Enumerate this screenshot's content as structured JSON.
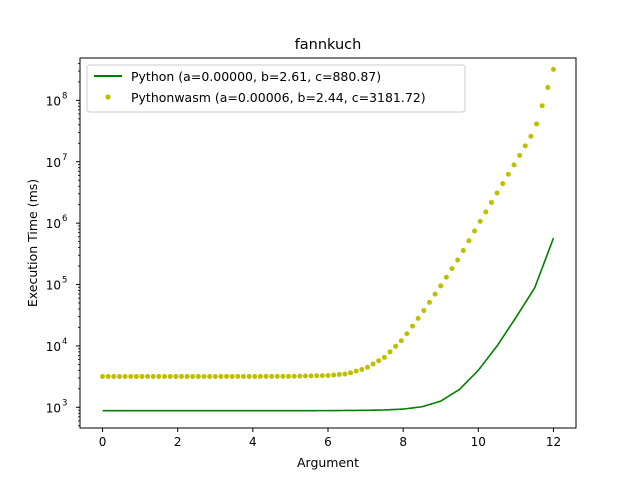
{
  "chart_data": {
    "type": "line",
    "title": "fannkuch",
    "xlabel": "Argument",
    "ylabel": "Execution Time (ms)",
    "xlim": [
      -0.6,
      12.6
    ],
    "ylim": [
      460,
      490000000
    ],
    "yscale": "log",
    "grid": false,
    "legend_position": "top-left",
    "x_ticks": [
      0,
      2,
      4,
      6,
      8,
      10,
      12
    ],
    "x_tick_labels": [
      "0",
      "2",
      "4",
      "6",
      "8",
      "10",
      "12"
    ],
    "y_ticks": [
      1000,
      10000,
      100000,
      1000000,
      10000000,
      100000000
    ],
    "y_tick_labels": [
      {
        "base": "10",
        "exp": "3"
      },
      {
        "base": "10",
        "exp": "4"
      },
      {
        "base": "10",
        "exp": "5"
      },
      {
        "base": "10",
        "exp": "6"
      },
      {
        "base": "10",
        "exp": "7"
      },
      {
        "base": "10",
        "exp": "8"
      }
    ],
    "series": [
      {
        "name": "Python (a=0.00000, b=2.61, c=880.87)",
        "style": "line",
        "color": "#008000",
        "x": [
          0,
          1,
          2,
          3,
          4,
          5,
          6,
          7,
          7.5,
          8,
          8.5,
          9,
          9.5,
          10,
          10.5,
          11,
          11.5,
          12
        ],
        "y": [
          880.87,
          880.87,
          880.87,
          880.87,
          881,
          881,
          883,
          893,
          905,
          935,
          1020,
          1260,
          1960,
          4000,
          10000,
          29000,
          88000,
          570000
        ]
      },
      {
        "name": "Pythonwasm (a=0.00006, b=2.44, c=3181.72)",
        "style": "points",
        "color": "#bfbf00",
        "x": [
          0,
          1,
          2,
          3,
          4,
          5,
          6,
          6.5,
          7,
          7.5,
          8,
          8.5,
          9,
          9.5,
          10,
          10.5,
          11,
          11.5,
          12
        ],
        "y": [
          3181.72,
          3181.72,
          3181.72,
          3181.73,
          3182,
          3189,
          3300,
          3500,
          4300,
          6500,
          13000,
          34000,
          95000,
          280000,
          950000,
          3100000,
          10000000,
          33000000,
          320000000
        ]
      }
    ]
  }
}
